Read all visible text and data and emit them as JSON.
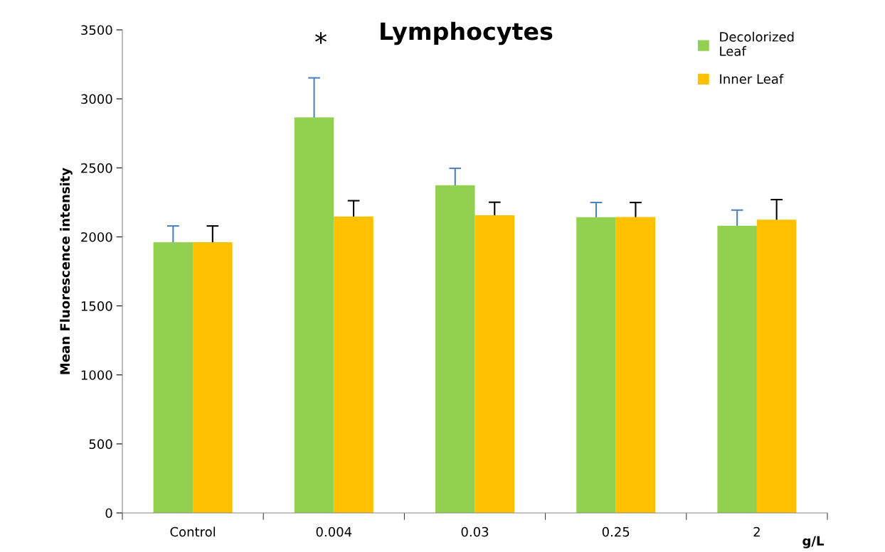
{
  "chart_data": {
    "type": "bar",
    "title": "Lymphocytes",
    "ylabel": "Mean Fluorescence intensity",
    "xlabel": "g/L",
    "categories": [
      "Control",
      "0.004",
      "0.03",
      "0.25",
      "2"
    ],
    "series": [
      {
        "name": "Decolorized\nLeaf",
        "color": "#92d050",
        "values": [
          1961,
          2865,
          2374,
          2143,
          2081
        ],
        "errors": [
          118,
          287,
          123,
          106,
          113
        ]
      },
      {
        "name": "Inner Leaf",
        "color": "#ffc000",
        "values": [
          1961,
          2148,
          2157,
          2144,
          2124
        ],
        "errors": [
          118,
          114,
          94,
          105,
          146
        ]
      }
    ],
    "annotations": [
      "*"
    ],
    "ylim": [
      0,
      3500
    ],
    "yticks": [
      0,
      500,
      1000,
      1500,
      2000,
      2500,
      3000,
      3500
    ],
    "grid": false,
    "legend": "top right"
  }
}
